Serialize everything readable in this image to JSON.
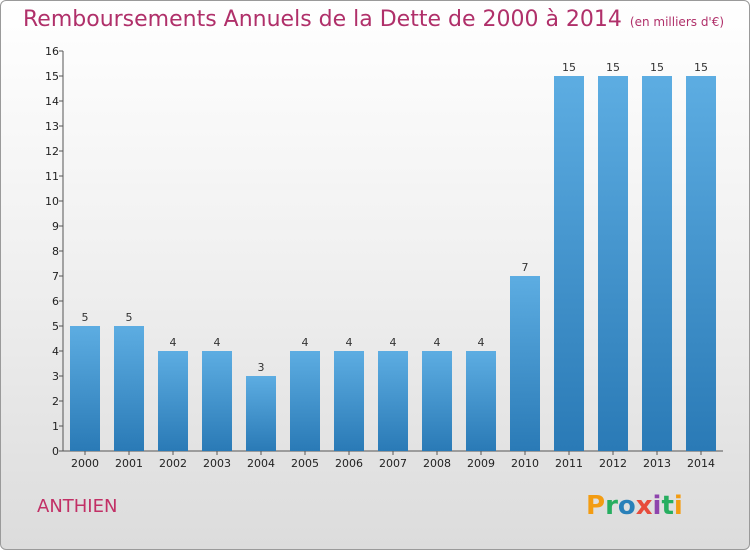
{
  "title": "Remboursements Annuels de la Dette de 2000 à 2014",
  "unit": "(en milliers d'€)",
  "commune": "ANTHIEN",
  "brand": {
    "letters": [
      "P",
      "r",
      "o",
      "x",
      "i",
      "t",
      "i"
    ],
    "colors": [
      "#f39c12",
      "#27ae60",
      "#2980b9",
      "#e74c3c",
      "#8e44ad",
      "#27ae60",
      "#f39c12"
    ]
  },
  "colors": {
    "bar_top": "#5dade2",
    "bar_bottom": "#2a7ab6",
    "title": "#b0306a"
  },
  "chart_data": {
    "type": "bar",
    "categories": [
      "2000",
      "2001",
      "2002",
      "2003",
      "2004",
      "2005",
      "2006",
      "2007",
      "2008",
      "2009",
      "2010",
      "2011",
      "2012",
      "2013",
      "2014"
    ],
    "values": [
      5,
      5,
      4,
      4,
      3,
      4,
      4,
      4,
      4,
      4,
      7,
      15,
      15,
      15,
      15
    ],
    "ylim": [
      0,
      16
    ],
    "yticks": [
      0,
      1,
      2,
      3,
      4,
      5,
      6,
      7,
      8,
      9,
      10,
      11,
      12,
      13,
      14,
      15,
      16
    ],
    "grid": false
  }
}
